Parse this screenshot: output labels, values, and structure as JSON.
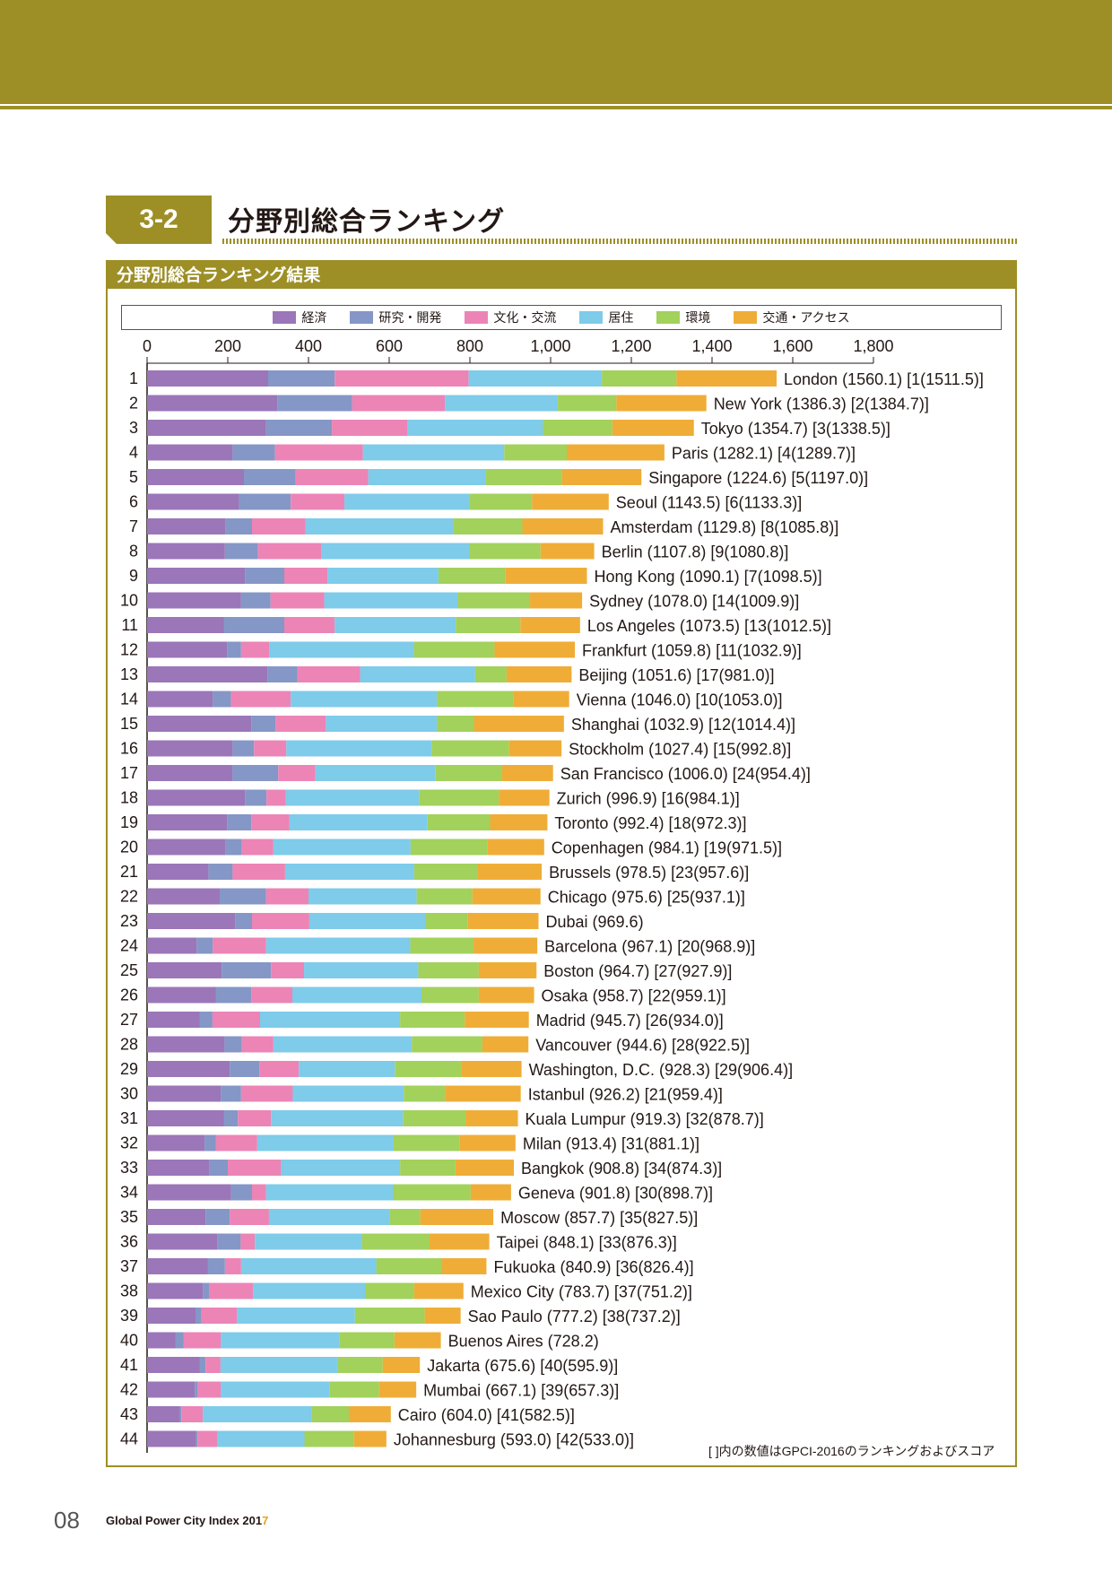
{
  "header": {
    "section_number": "3-2",
    "section_title": "分野別総合ランキング",
    "subheading": "分野別総合ランキング結果"
  },
  "colors": {
    "band": "#9d8f26",
    "economy": "#9b76b8",
    "rnd": "#8497c6",
    "culture": "#ec84b6",
    "livability": "#7ecbea",
    "environment": "#a2d15c",
    "accessibility": "#efad37"
  },
  "legend": [
    {
      "label": "経済",
      "color": "#9b76b8"
    },
    {
      "label": "研究・開発",
      "color": "#8497c6"
    },
    {
      "label": "文化・交流",
      "color": "#ec84b6"
    },
    {
      "label": "居住",
      "color": "#7ecbea"
    },
    {
      "label": "環境",
      "color": "#a2d15c"
    },
    {
      "label": "交通・アクセス",
      "color": "#efad37"
    }
  ],
  "chart_data": {
    "type": "bar",
    "orientation": "horizontal",
    "stacked": true,
    "xlim": [
      0,
      1800
    ],
    "xticks": [
      0,
      200,
      400,
      600,
      800,
      1000,
      1200,
      1400,
      1600,
      1800
    ],
    "xtick_labels": [
      "0",
      "200",
      "400",
      "600",
      "800",
      "1,000",
      "1,200",
      "1,400",
      "1,600",
      "1,800"
    ],
    "series": [
      "経済",
      "研究・開発",
      "文化・交流",
      "居住",
      "環境",
      "交通・アクセス"
    ],
    "rows": [
      {
        "rank": "1",
        "label": "London (1560.1) [1(1511.5)]",
        "values": [
          300,
          165,
          332,
          330,
          185,
          248
        ]
      },
      {
        "rank": "2",
        "label": "New York (1386.3) [2(1384.7)]",
        "values": [
          323,
          185,
          230,
          280,
          145,
          223
        ]
      },
      {
        "rank": "3",
        "label": "Tokyo (1354.7) [3(1338.5)]",
        "values": [
          295,
          163,
          188,
          335,
          172,
          202
        ]
      },
      {
        "rank": "4",
        "label": "Paris (1282.1) [4(1289.7)]",
        "values": [
          212,
          105,
          218,
          350,
          155,
          242
        ]
      },
      {
        "rank": "5",
        "label": "Singapore (1224.6) [5(1197.0)]",
        "values": [
          240,
          128,
          180,
          290,
          190,
          197
        ]
      },
      {
        "rank": "6",
        "label": "Seoul (1143.5) [6(1133.3)]",
        "values": [
          228,
          128,
          133,
          310,
          155,
          190
        ]
      },
      {
        "rank": "7",
        "label": "Amsterdam (1129.8) [8(1085.8)]",
        "values": [
          195,
          65,
          133,
          365,
          172,
          200
        ]
      },
      {
        "rank": "8",
        "label": "Berlin (1107.8) [9(1080.8)]",
        "values": [
          193,
          82,
          157,
          368,
          175,
          133
        ]
      },
      {
        "rank": "9",
        "label": "Hong Kong (1090.1) [7(1098.5)]",
        "values": [
          243,
          97,
          107,
          275,
          165,
          203
        ]
      },
      {
        "rank": "10",
        "label": "Sydney (1078.0) [14(1009.9)]",
        "values": [
          233,
          73,
          133,
          330,
          180,
          129
        ]
      },
      {
        "rank": "11",
        "label": "Los Angeles (1073.5) [13(1012.5)]",
        "values": [
          190,
          150,
          125,
          300,
          160,
          148
        ]
      },
      {
        "rank": "12",
        "label": "Frankfurt (1059.8) [11(1032.9)]",
        "values": [
          198,
          35,
          70,
          358,
          200,
          199
        ]
      },
      {
        "rank": "13",
        "label": "Beijing (1051.6) [17(981.0)]",
        "values": [
          298,
          75,
          155,
          285,
          78,
          161
        ]
      },
      {
        "rank": "14",
        "label": "Vienna (1046.0) [10(1053.0)]",
        "values": [
          163,
          45,
          148,
          362,
          190,
          138
        ]
      },
      {
        "rank": "15",
        "label": "Shanghai (1032.9) [12(1014.4)]",
        "values": [
          258,
          60,
          125,
          275,
          92,
          223
        ]
      },
      {
        "rank": "16",
        "label": "Stockholm (1027.4) [15(992.8)]",
        "values": [
          212,
          53,
          80,
          360,
          192,
          130
        ]
      },
      {
        "rank": "17",
        "label": "San Francisco (1006.0) [24(954.4)]",
        "values": [
          212,
          113,
          92,
          298,
          165,
          126
        ]
      },
      {
        "rank": "18",
        "label": "Zurich (996.9) [16(984.1)]",
        "values": [
          243,
          53,
          48,
          330,
          198,
          125
        ]
      },
      {
        "rank": "19",
        "label": "Toronto (992.4) [18(972.3)]",
        "values": [
          198,
          60,
          95,
          342,
          155,
          142
        ]
      },
      {
        "rank": "20",
        "label": "Copenhagen (984.1) [19(971.5)]",
        "values": [
          195,
          40,
          78,
          340,
          190,
          141
        ]
      },
      {
        "rank": "21",
        "label": "Brussels (978.5) [23(957.6)]",
        "values": [
          152,
          60,
          130,
          320,
          158,
          158
        ]
      },
      {
        "rank": "22",
        "label": "Chicago (975.6) [25(937.1)]",
        "values": [
          180,
          115,
          105,
          268,
          138,
          169
        ]
      },
      {
        "rank": "23",
        "label": "Dubai (969.6)",
        "values": [
          218,
          42,
          142,
          288,
          105,
          175
        ]
      },
      {
        "rank": "24",
        "label": "Barcelona (967.1) [20(968.9)]",
        "values": [
          123,
          40,
          132,
          357,
          157,
          158
        ]
      },
      {
        "rank": "25",
        "label": "Boston (964.7) [27(927.9)]",
        "values": [
          185,
          122,
          82,
          283,
          150,
          143
        ]
      },
      {
        "rank": "26",
        "label": "Osaka (958.7) [22(959.1)]",
        "values": [
          170,
          88,
          102,
          320,
          142,
          137
        ]
      },
      {
        "rank": "27",
        "label": "Madrid (945.7) [26(934.0)]",
        "values": [
          130,
          32,
          118,
          347,
          160,
          159
        ]
      },
      {
        "rank": "28",
        "label": "Vancouver (944.6) [28(922.5)]",
        "values": [
          192,
          43,
          78,
          343,
          175,
          114
        ]
      },
      {
        "rank": "29",
        "label": "Washington, D.C. (928.3) [29(906.4)]",
        "values": [
          205,
          73,
          98,
          238,
          165,
          149
        ]
      },
      {
        "rank": "30",
        "label": "Istanbul (926.2) [21(959.4)]",
        "values": [
          183,
          50,
          128,
          275,
          102,
          188
        ]
      },
      {
        "rank": "31",
        "label": "Kuala Lumpur (919.3) [32(878.7)]",
        "values": [
          190,
          35,
          82,
          327,
          155,
          130
        ]
      },
      {
        "rank": "32",
        "label": "Milan (913.4) [31(881.1)]",
        "values": [
          143,
          27,
          103,
          338,
          163,
          139
        ]
      },
      {
        "rank": "33",
        "label": "Bangkok (908.8) [34(874.3)]",
        "values": [
          155,
          45,
          132,
          295,
          137,
          145
        ]
      },
      {
        "rank": "34",
        "label": "Geneva (901.8) [30(898.7)]",
        "values": [
          208,
          52,
          35,
          315,
          192,
          100
        ]
      },
      {
        "rank": "35",
        "label": "Moscow (857.7) [35(827.5)]",
        "values": [
          145,
          60,
          97,
          300,
          75,
          181
        ]
      },
      {
        "rank": "36",
        "label": "Taipei (848.1) [33(876.3)]",
        "values": [
          175,
          57,
          35,
          265,
          168,
          148
        ]
      },
      {
        "rank": "37",
        "label": "Fukuoka (840.9) [36(826.4)]",
        "values": [
          150,
          43,
          40,
          335,
          162,
          111
        ]
      },
      {
        "rank": "38",
        "label": "Mexico City (783.7) [37(751.2)]",
        "values": [
          138,
          17,
          108,
          277,
          122,
          122
        ]
      },
      {
        "rank": "39",
        "label": "Sao Paulo (777.2) [38(737.2)]",
        "values": [
          120,
          15,
          88,
          292,
          173,
          89
        ]
      },
      {
        "rank": "40",
        "label": "Buenos Aires (728.2)",
        "values": [
          70,
          20,
          93,
          293,
          137,
          115
        ]
      },
      {
        "rank": "41",
        "label": "Jakarta (675.6) [40(595.9)]",
        "values": [
          130,
          15,
          37,
          290,
          112,
          92
        ]
      },
      {
        "rank": "42",
        "label": "Mumbai (667.1) [39(657.3)]",
        "values": [
          118,
          8,
          57,
          270,
          122,
          92
        ]
      },
      {
        "rank": "43",
        "label": "Cairo (604.0) [41(582.5)]",
        "values": [
          80,
          5,
          53,
          270,
          92,
          104
        ]
      },
      {
        "rank": "44",
        "label": "Johannesburg (593.0) [42(533.0)]",
        "values": [
          120,
          5,
          50,
          215,
          123,
          80
        ]
      }
    ]
  },
  "footnote": "[  ]内の数値はGPCI-2016のランキングおよびスコア",
  "footer": {
    "page_number": "08",
    "publication": "Global Power City Index 201",
    "publication_accent": "7"
  }
}
